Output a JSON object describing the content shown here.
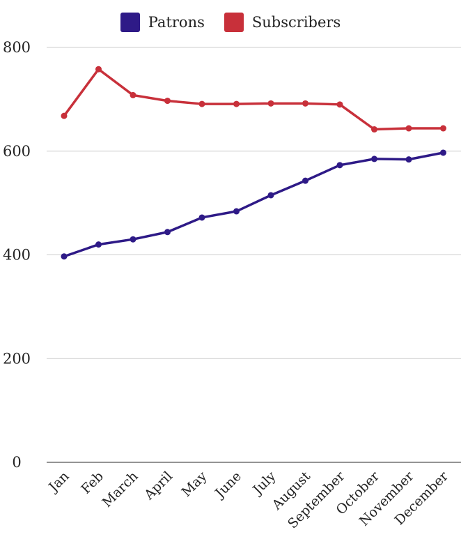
{
  "chart_data": {
    "type": "line",
    "categories": [
      "Jan",
      "Feb",
      "March",
      "April",
      "May",
      "June",
      "July",
      "August",
      "September",
      "October",
      "November",
      "December"
    ],
    "series": [
      {
        "name": "Patrons",
        "color": "#2e1a87",
        "values": [
          397,
          420,
          430,
          444,
          472,
          484,
          515,
          543,
          573,
          585,
          584,
          597
        ]
      },
      {
        "name": "Subscribers",
        "color": "#c8303a",
        "values": [
          668,
          758,
          708,
          697,
          691,
          691,
          692,
          692,
          690,
          642,
          644,
          644
        ]
      }
    ],
    "yticks": [
      0,
      200,
      400,
      600,
      800
    ],
    "ylim": [
      0,
      800
    ],
    "grid": true,
    "legend_position": "top-center"
  }
}
